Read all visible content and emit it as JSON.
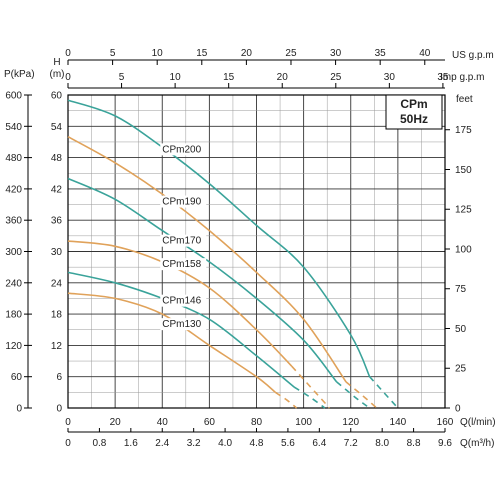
{
  "chart_data": {
    "type": "line",
    "title": "CPm",
    "subtitle": "50Hz",
    "grid": true,
    "legend": "none",
    "axes": {
      "x_main": {
        "label": "Q(l/min)",
        "range": [
          0,
          160
        ],
        "ticks": [
          0,
          20,
          40,
          60,
          80,
          100,
          120,
          140,
          160
        ]
      },
      "x_m3h": {
        "label": "Q(m³/h)",
        "ticks": [
          "0",
          "0.8",
          "1.6",
          "2.4",
          "3.2",
          "4.0",
          "4.8",
          "5.6",
          "6.4",
          "7.2",
          "8.0",
          "8.8",
          "9.6"
        ]
      },
      "x_us": {
        "label": "US g.p.m",
        "ticks": [
          "0",
          "5",
          "10",
          "15",
          "20",
          "25",
          "30",
          "35",
          "40"
        ]
      },
      "x_imp": {
        "label": "Imp g.p.m",
        "ticks": [
          "0",
          "5",
          "10",
          "15",
          "20",
          "25",
          "30",
          "35"
        ]
      },
      "y_head": {
        "label_top": "H",
        "label_unit": "(m)",
        "range": [
          0,
          60
        ],
        "ticks": [
          0,
          6,
          12,
          18,
          24,
          30,
          36,
          42,
          48,
          54,
          60
        ]
      },
      "y_pressure": {
        "label": "P(kPa)",
        "ticks": [
          0,
          60,
          120,
          180,
          240,
          300,
          360,
          420,
          480,
          540,
          600
        ]
      },
      "y_feet": {
        "label": "feet",
        "ticks": [
          0,
          25,
          50,
          75,
          100,
          125,
          150,
          175
        ]
      }
    },
    "series": [
      {
        "name": "CPm200",
        "color": "#3aa39a",
        "label_at": [
          40,
          49
        ],
        "x": [
          0,
          20,
          40,
          60,
          80,
          100,
          120,
          128,
          134,
          140
        ],
        "y": [
          59,
          56,
          50,
          43,
          35,
          27,
          14,
          6,
          3,
          0
        ],
        "dash_from": 128
      },
      {
        "name": "CPm190",
        "color": "#e0a25a",
        "label_at": [
          40,
          39
        ],
        "x": [
          0,
          20,
          40,
          60,
          80,
          100,
          118,
          126,
          131
        ],
        "y": [
          52,
          47,
          41,
          34,
          26,
          17,
          5,
          2,
          0
        ],
        "dash_from": 118
      },
      {
        "name": "CPm170",
        "color": "#3aa39a",
        "label_at": [
          40,
          31.5
        ],
        "x": [
          0,
          20,
          40,
          60,
          80,
          100,
          114,
          122,
          128
        ],
        "y": [
          44,
          40,
          34,
          28,
          21,
          13,
          5,
          2,
          0
        ],
        "dash_from": 114
      },
      {
        "name": "CPm158",
        "color": "#e0a25a",
        "label_at": [
          40,
          27
        ],
        "x": [
          0,
          20,
          40,
          60,
          80,
          95,
          105,
          111
        ],
        "y": [
          32,
          31,
          28,
          23,
          15,
          8,
          3,
          0
        ],
        "dash_from": 95
      },
      {
        "name": "CPm146",
        "color": "#3aa39a",
        "label_at": [
          40,
          20
        ],
        "x": [
          0,
          20,
          40,
          60,
          80,
          96,
          103,
          109
        ],
        "y": [
          26,
          24,
          21,
          17,
          10,
          4,
          2,
          0
        ],
        "dash_from": 96
      },
      {
        "name": "CPm130",
        "color": "#e0a25a",
        "label_at": [
          40,
          15.5
        ],
        "x": [
          0,
          20,
          40,
          60,
          80,
          88,
          93,
          97
        ],
        "y": [
          22,
          21,
          18,
          12,
          6,
          3,
          1.5,
          0
        ],
        "dash_from": 88
      }
    ]
  }
}
